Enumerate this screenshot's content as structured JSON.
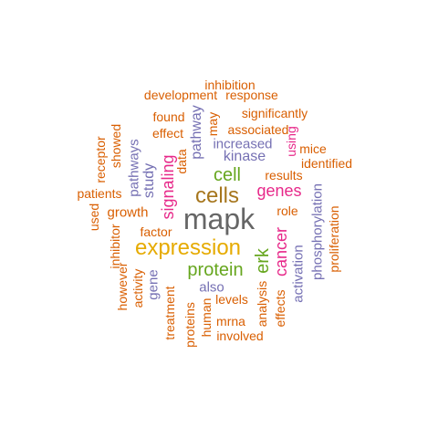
{
  "palette": {
    "orange": "#d95f02",
    "purple": "#7570b3",
    "magenta": "#e7298a",
    "green": "#66a61e",
    "gold": "#e6ab02",
    "brown": "#a6761d",
    "gray": "#666666"
  },
  "words": [
    {
      "text": "mapk",
      "color": "gray",
      "vertical": false
    },
    {
      "text": "expression",
      "color": "gold",
      "vertical": false
    },
    {
      "text": "cells",
      "color": "brown",
      "vertical": false
    },
    {
      "text": "cell",
      "color": "green",
      "vertical": false
    },
    {
      "text": "protein",
      "color": "green",
      "vertical": false
    },
    {
      "text": "erk",
      "color": "green",
      "vertical": true
    },
    {
      "text": "genes",
      "color": "magenta",
      "vertical": false
    },
    {
      "text": "signaling",
      "color": "magenta",
      "vertical": true
    },
    {
      "text": "cancer",
      "color": "magenta",
      "vertical": true
    },
    {
      "text": "kinase",
      "color": "purple",
      "vertical": false
    },
    {
      "text": "increased",
      "color": "purple",
      "vertical": false
    },
    {
      "text": "pathway",
      "color": "purple",
      "vertical": true
    },
    {
      "text": "study",
      "color": "purple",
      "vertical": true
    },
    {
      "text": "pathways",
      "color": "purple",
      "vertical": true
    },
    {
      "text": "activation",
      "color": "purple",
      "vertical": true
    },
    {
      "text": "phosphorylation",
      "color": "purple",
      "vertical": true
    },
    {
      "text": "gene",
      "color": "purple",
      "vertical": true
    },
    {
      "text": "also",
      "color": "purple",
      "vertical": false
    },
    {
      "text": "growth",
      "color": "orange",
      "vertical": false
    },
    {
      "text": "factor",
      "color": "orange",
      "vertical": false
    },
    {
      "text": "role",
      "color": "orange",
      "vertical": false
    },
    {
      "text": "results",
      "color": "orange",
      "vertical": false
    },
    {
      "text": "using",
      "color": "magenta",
      "vertical": true
    },
    {
      "text": "mice",
      "color": "orange",
      "vertical": false
    },
    {
      "text": "identified",
      "color": "orange",
      "vertical": false
    },
    {
      "text": "associated",
      "color": "orange",
      "vertical": false
    },
    {
      "text": "significantly",
      "color": "orange",
      "vertical": false
    },
    {
      "text": "response",
      "color": "orange",
      "vertical": false
    },
    {
      "text": "development",
      "color": "orange",
      "vertical": false
    },
    {
      "text": "inhibition",
      "color": "orange",
      "vertical": false
    },
    {
      "text": "may",
      "color": "orange",
      "vertical": true
    },
    {
      "text": "found",
      "color": "orange",
      "vertical": false
    },
    {
      "text": "effect",
      "color": "orange",
      "vertical": false
    },
    {
      "text": "data",
      "color": "orange",
      "vertical": true
    },
    {
      "text": "receptor",
      "color": "orange",
      "vertical": true
    },
    {
      "text": "showed",
      "color": "orange",
      "vertical": true
    },
    {
      "text": "patients",
      "color": "orange",
      "vertical": false
    },
    {
      "text": "used",
      "color": "orange",
      "vertical": true
    },
    {
      "text": "inhibitor",
      "color": "orange",
      "vertical": true
    },
    {
      "text": "however",
      "color": "orange",
      "vertical": true
    },
    {
      "text": "activity",
      "color": "orange",
      "vertical": true
    },
    {
      "text": "treatment",
      "color": "orange",
      "vertical": true
    },
    {
      "text": "proteins",
      "color": "orange",
      "vertical": true
    },
    {
      "text": "human",
      "color": "orange",
      "vertical": true
    },
    {
      "text": "levels",
      "color": "orange",
      "vertical": false
    },
    {
      "text": "mrna",
      "color": "orange",
      "vertical": false
    },
    {
      "text": "involved",
      "color": "orange",
      "vertical": false
    },
    {
      "text": "analysis",
      "color": "orange",
      "vertical": true
    },
    {
      "text": "effects",
      "color": "orange",
      "vertical": true
    },
    {
      "text": "proliferation",
      "color": "orange",
      "vertical": true
    }
  ]
}
